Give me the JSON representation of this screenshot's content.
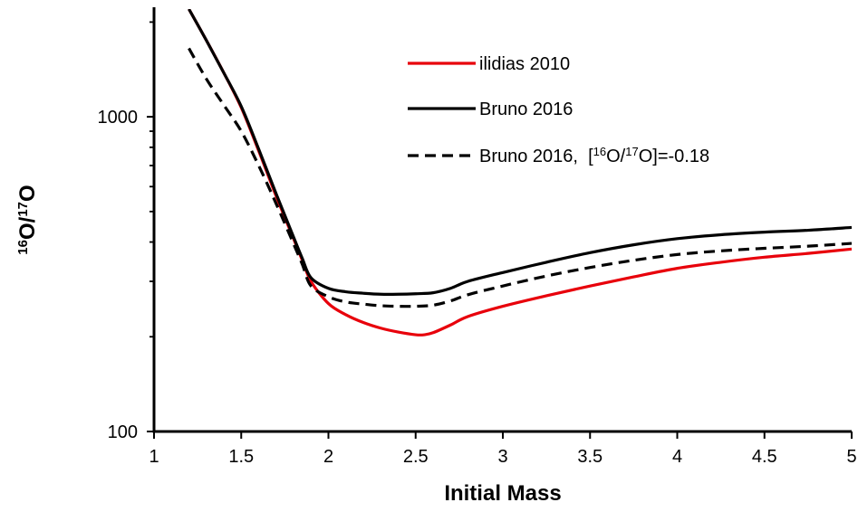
{
  "chart_data": {
    "type": "line",
    "xlabel": "Initial Mass",
    "ylabel_parts": [
      "16",
      "O/",
      "17",
      "O"
    ],
    "xlim": [
      1,
      5
    ],
    "ylim": [
      100,
      2200
    ],
    "yscale": "log",
    "x_ticks": [
      1,
      1.5,
      2,
      2.5,
      3,
      3.5,
      4,
      4.5,
      5
    ],
    "x_tick_labels": [
      "1",
      "1.5",
      "2",
      "2.5",
      "3",
      "3.5",
      "4",
      "4.5",
      "5"
    ],
    "y_tick_labels": [
      {
        "value": 100,
        "label": "100"
      },
      {
        "value": 1000,
        "label": "1000"
      }
    ],
    "y_minor_ticks": [
      200,
      300,
      400,
      500,
      600,
      700,
      800,
      900,
      2000
    ],
    "legend_placement": "top-right",
    "legend_annotation_parts": [
      "Bruno 2016,  [",
      "16",
      "O/",
      "17",
      "O]=-0.18"
    ],
    "series": [
      {
        "name": "ilidias 2010",
        "color": "#e8000b",
        "dash": "solid",
        "x": [
          1.2,
          1.3,
          1.4,
          1.5,
          1.6,
          1.7,
          1.8,
          1.85,
          1.9,
          2.0,
          2.1,
          2.2,
          2.3,
          2.4,
          2.5,
          2.55,
          2.6,
          2.7,
          2.8,
          3.0,
          3.25,
          3.5,
          3.75,
          4.0,
          4.25,
          4.5,
          4.75,
          5.0
        ],
        "values": [
          2200,
          1750,
          1380,
          1070,
          780,
          560,
          410,
          350,
          300,
          255,
          235,
          222,
          213,
          207,
          203,
          203,
          206,
          218,
          232,
          250,
          270,
          290,
          310,
          330,
          345,
          358,
          368,
          380
        ]
      },
      {
        "name": "Bruno 2016",
        "color": "#000000",
        "dash": "solid",
        "x": [
          1.2,
          1.3,
          1.4,
          1.5,
          1.6,
          1.7,
          1.8,
          1.85,
          1.9,
          2.0,
          2.1,
          2.2,
          2.3,
          2.4,
          2.5,
          2.6,
          2.7,
          2.8,
          3.0,
          3.25,
          3.5,
          3.75,
          4.0,
          4.25,
          4.5,
          4.75,
          5.0
        ],
        "values": [
          2200,
          1750,
          1380,
          1080,
          790,
          570,
          415,
          355,
          308,
          285,
          278,
          275,
          273,
          273,
          274,
          276,
          285,
          300,
          320,
          345,
          370,
          392,
          410,
          422,
          430,
          436,
          445
        ]
      },
      {
        "name": "Bruno 2016,  [16O/17O]=-0.18",
        "color": "#000000",
        "dash": "dashed",
        "x": [
          1.2,
          1.3,
          1.4,
          1.5,
          1.6,
          1.7,
          1.8,
          1.85,
          1.9,
          2.0,
          2.1,
          2.2,
          2.3,
          2.4,
          2.5,
          2.6,
          2.7,
          2.8,
          3.0,
          3.25,
          3.5,
          3.75,
          4.0,
          4.25,
          4.5,
          4.75,
          5.0
        ],
        "values": [
          1650,
          1320,
          1090,
          900,
          700,
          530,
          395,
          340,
          290,
          268,
          258,
          254,
          251,
          250,
          250,
          252,
          260,
          272,
          290,
          312,
          332,
          350,
          365,
          375,
          382,
          388,
          396
        ]
      }
    ]
  }
}
